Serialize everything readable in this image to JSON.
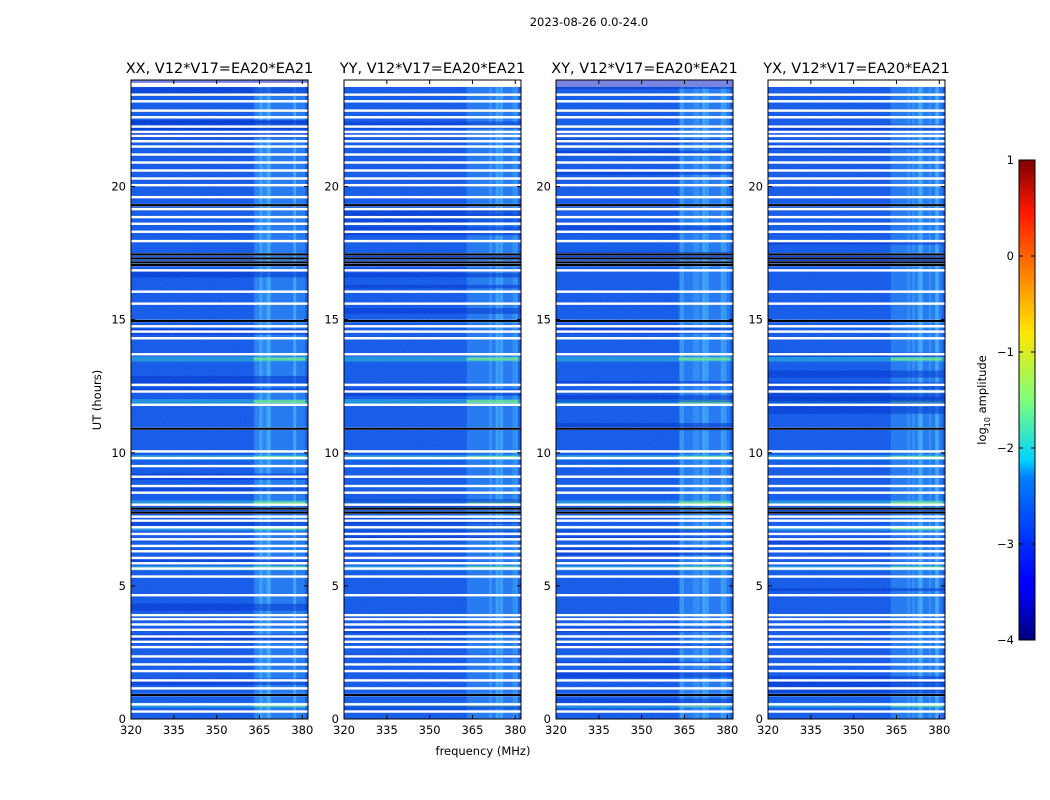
{
  "chart_data": {
    "type": "heatmap",
    "suptitle": "2023-08-26 0.0-24.0",
    "xlabel": "frequency (MHz)",
    "ylabel": "UT (hours)",
    "xlim": [
      320,
      382
    ],
    "ylim": [
      0,
      24
    ],
    "xticks": [
      320,
      335,
      350,
      365,
      380
    ],
    "yticks": [
      0,
      5,
      10,
      15,
      20
    ],
    "panels": [
      {
        "title": "XX, V12*V17=EA20*EA21"
      },
      {
        "title": "YY, V12*V17=EA20*EA21"
      },
      {
        "title": "XY, V12*V17=EA20*EA21"
      },
      {
        "title": "YX, V12*V17=EA20*EA21"
      }
    ],
    "colorbar": {
      "label": "log10 amplitude",
      "label_main": "log",
      "label_sub": "10",
      "label_tail": " amplitude",
      "range": [
        -4,
        1
      ],
      "ticks": [
        1,
        0,
        -1,
        -2,
        -3,
        -4
      ],
      "tick_labels": [
        "1",
        "0",
        "−1",
        "−2",
        "−3",
        "−4"
      ],
      "colormap": "jet"
    },
    "flagged_hours": [
      0.28,
      0.55,
      0.9,
      1.15,
      1.45,
      1.8,
      2.05,
      2.35,
      2.7,
      2.9,
      3.1,
      3.35,
      3.55,
      3.75,
      3.9,
      4.65,
      5.35,
      5.65,
      5.85,
      6.05,
      6.3,
      6.5,
      6.75,
      6.95,
      7.2,
      7.45,
      7.6,
      7.75,
      7.9,
      8.05,
      8.5,
      8.75,
      9.1,
      9.5,
      9.8,
      10.05,
      10.9,
      11.8,
      12.3,
      12.55,
      13.7,
      14.3,
      14.55,
      14.75,
      14.95,
      15.6,
      16.05,
      16.85,
      17.05,
      17.15,
      17.3,
      17.45,
      17.95,
      18.3,
      18.6,
      18.85,
      19.15,
      19.3,
      19.6,
      20.05,
      20.3,
      20.6,
      20.9,
      21.2,
      21.5,
      21.7,
      21.9,
      22.05,
      22.25,
      22.6,
      22.85,
      23.2,
      23.45
    ],
    "thick_flagged_hours": [
      0.9,
      7.75,
      7.9,
      10.9,
      14.95,
      17.05,
      17.15,
      17.3,
      17.45,
      19.3
    ],
    "bright_bands_hours": [
      0.5,
      5.65,
      7.15,
      8.1,
      9.8,
      11.9,
      13.5
    ],
    "rfi_band_mhz": [
      363,
      381
    ]
  }
}
